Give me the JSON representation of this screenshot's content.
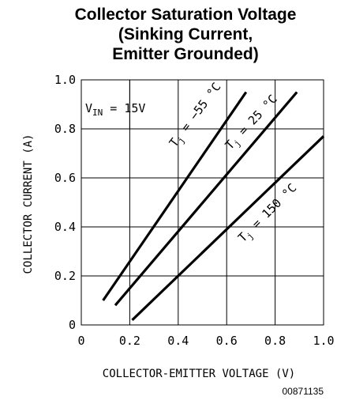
{
  "chart_data": {
    "type": "line",
    "title_lines": [
      "Collector Saturation Voltage",
      "(Sinking Current,",
      "Emitter Grounded)"
    ],
    "xlabel": "COLLECTOR-EMITTER VOLTAGE (V)",
    "ylabel": "COLLECTOR CURRENT (A)",
    "xlim": [
      0,
      1.0
    ],
    "ylim": [
      0,
      1.0
    ],
    "xticks": [
      "0",
      "0.2",
      "0.4",
      "0.6",
      "0.8",
      "1.0"
    ],
    "yticks": [
      "0",
      "0.2",
      "0.4",
      "0.6",
      "0.8",
      "1.0"
    ],
    "grid": true,
    "annotation": {
      "main": "V",
      "sub": "IN",
      "rest": " = 15V"
    },
    "series": [
      {
        "name": "Tj = -55 °C",
        "label": {
          "main": "T",
          "sub": "j",
          "rest": " = −55 °C"
        },
        "x": [
          0.09,
          0.68
        ],
        "y": [
          0.1,
          0.95
        ]
      },
      {
        "name": "Tj = 25 °C",
        "label": {
          "main": "T",
          "sub": "j",
          "rest": " = 25 °C"
        },
        "x": [
          0.14,
          0.89
        ],
        "y": [
          0.08,
          0.95
        ]
      },
      {
        "name": "Tj = 150 °C",
        "label": {
          "main": "T",
          "sub": "j",
          "rest": " = 150 °C"
        },
        "x": [
          0.21,
          1.0
        ],
        "y": [
          0.02,
          0.77
        ]
      }
    ],
    "figure_id": "00871135"
  }
}
